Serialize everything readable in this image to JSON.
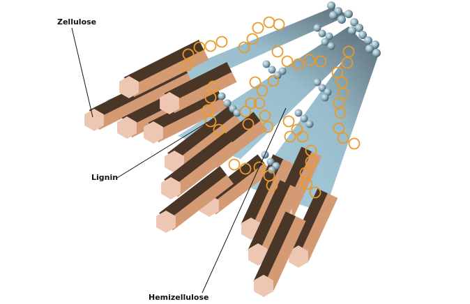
{
  "diagram": {
    "labels": {
      "cellulose": "Zellulose",
      "lignin": "Lignin",
      "hemicellulose": "Hemizellulose"
    },
    "colors": {
      "fiber_light": "#d49a74",
      "fiber_dark": "#4a3627",
      "fiber_end": "#edc7b4",
      "sheath_light": "#a7ccdb",
      "sheath_dark": "#5d6f78",
      "lignin_ring": "#e89a2c",
      "bead_light": "#c6dde6",
      "bead_dark": "#3f5866",
      "leader_line": "#111111"
    }
  }
}
